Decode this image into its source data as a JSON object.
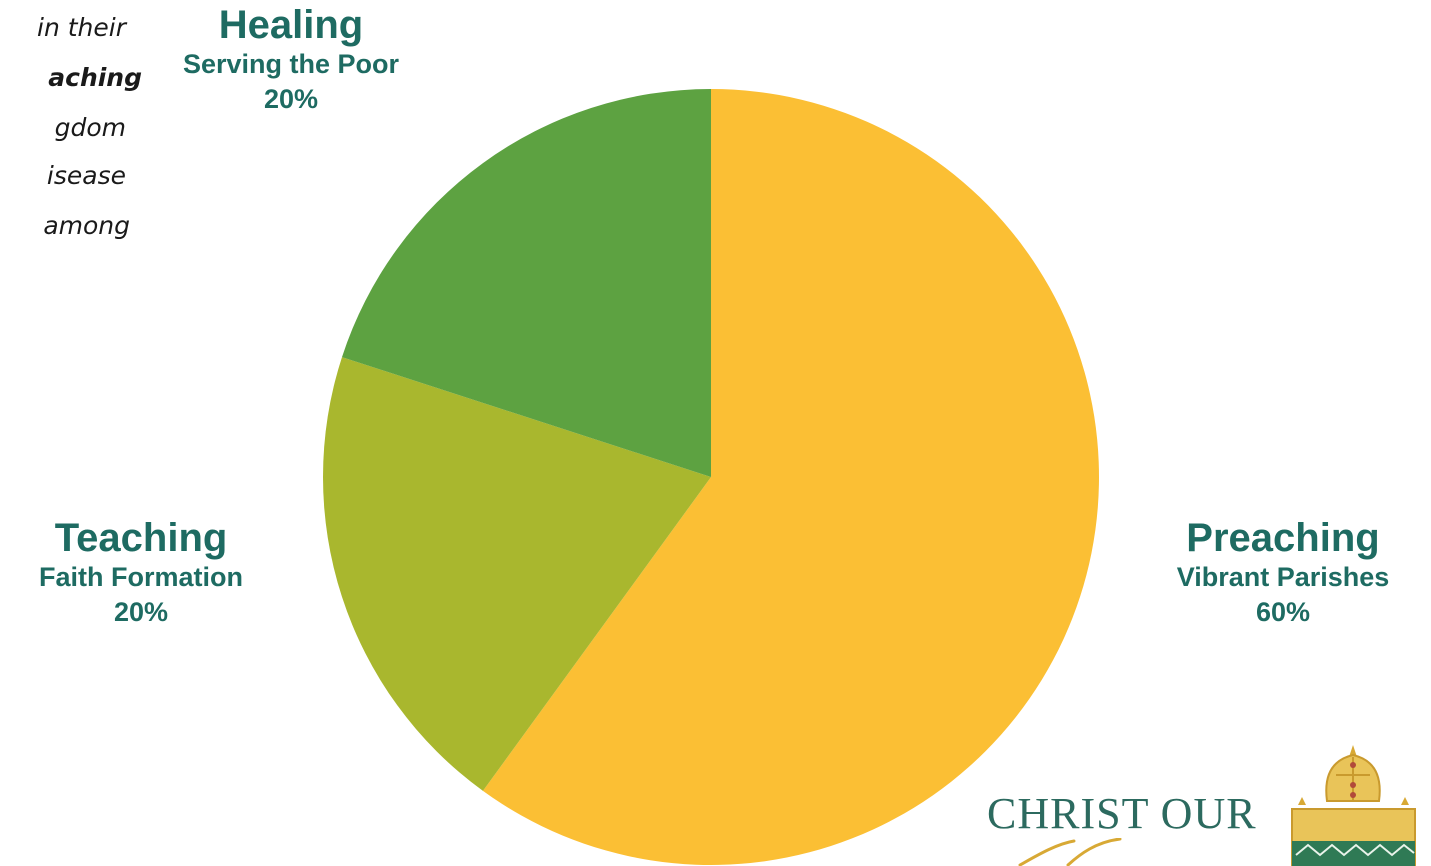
{
  "intro_text": {
    "lines": [
      {
        "text": "in their",
        "bold": false
      },
      {
        "text": "aching",
        "bold": true
      },
      {
        "text": "gdom",
        "bold": false
      },
      {
        "text": "isease",
        "bold": false
      },
      {
        "text": "among",
        "bold": false
      }
    ]
  },
  "chart_data": {
    "type": "pie",
    "slices": [
      {
        "label": "Preaching",
        "sublabel": "Vibrant Parishes",
        "value": 60,
        "value_label": "60%",
        "color": "#FBBF34"
      },
      {
        "label": "Teaching",
        "sublabel": "Faith Formation",
        "value": 20,
        "value_label": "20%",
        "color": "#A9B72E"
      },
      {
        "label": "Healing",
        "sublabel": "Serving the Poor",
        "value": 20,
        "value_label": "20%",
        "color": "#5DA241"
      }
    ],
    "start_angle_deg": 0,
    "direction": "clockwise",
    "legend": "none"
  },
  "colors": {
    "label_text": "#1E6B62",
    "brand_text": "#2C6A5F",
    "brand_gold": "#D8A935",
    "crest_green": "#2F7A55"
  },
  "brand": {
    "text": "CHRIST OUR"
  }
}
